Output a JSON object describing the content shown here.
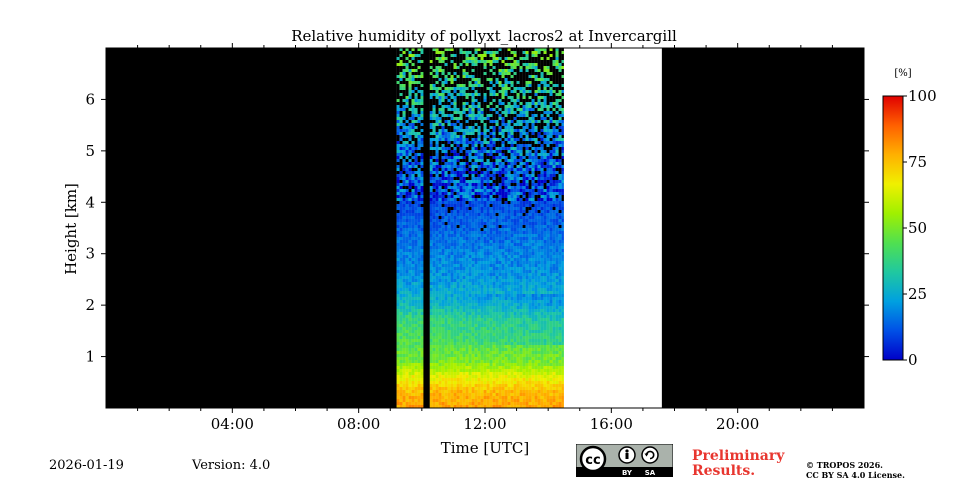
{
  "chart_data": {
    "type": "heatmap",
    "title": "Relative humidity of pollyxt_lacros2 at Invercargill",
    "xlabel": "Time [UTC]",
    "ylabel": "Height [km]",
    "xlim": [
      0,
      24
    ],
    "ylim": [
      0,
      7
    ],
    "x_ticks": [
      {
        "value": 4,
        "label": "04:00"
      },
      {
        "value": 8,
        "label": "08:00"
      },
      {
        "value": 12,
        "label": "12:00"
      },
      {
        "value": 16,
        "label": "16:00"
      },
      {
        "value": 20,
        "label": "20:00"
      }
    ],
    "y_ticks": [
      {
        "value": 1,
        "label": "1"
      },
      {
        "value": 2,
        "label": "2"
      },
      {
        "value": 3,
        "label": "3"
      },
      {
        "value": 4,
        "label": "4"
      },
      {
        "value": 5,
        "label": "5"
      },
      {
        "value": 6,
        "label": "6"
      }
    ],
    "colorbar": {
      "unit": "[%]",
      "range": [
        0,
        100
      ],
      "ticks": [
        {
          "value": 0,
          "label": "0"
        },
        {
          "value": 25,
          "label": "25"
        },
        {
          "value": 50,
          "label": "50"
        },
        {
          "value": 75,
          "label": "75"
        },
        {
          "value": 100,
          "label": "100"
        }
      ],
      "colormap": [
        "#0000c8",
        "#0050e6",
        "#00a0e0",
        "#20c8a0",
        "#50e050",
        "#a0f000",
        "#f0f000",
        "#ffb000",
        "#ff6000",
        "#e00000"
      ]
    },
    "no_data_color": "#000000",
    "gap_color": "#ffffff",
    "no_data_intervals": [
      [
        0,
        9.2
      ],
      [
        10.05,
        10.25
      ],
      [
        17.6,
        24
      ]
    ],
    "white_intervals": [
      [
        14.5,
        17.6
      ]
    ],
    "measurement_interval": [
      9.2,
      14.5
    ],
    "profile": [
      {
        "h": 0.0,
        "rh": 80
      },
      {
        "h": 0.3,
        "rh": 76
      },
      {
        "h": 0.6,
        "rh": 66
      },
      {
        "h": 0.9,
        "rh": 50
      },
      {
        "h": 1.3,
        "rh": 44
      },
      {
        "h": 1.7,
        "rh": 40
      },
      {
        "h": 2.0,
        "rh": 30
      },
      {
        "h": 2.5,
        "rh": 21
      },
      {
        "h": 3.0,
        "rh": 18
      },
      {
        "h": 3.5,
        "rh": 14
      },
      {
        "h": 4.0,
        "rh": 10
      },
      {
        "h": 4.5,
        "rh": 12
      },
      {
        "h": 5.0,
        "rh": 16
      },
      {
        "h": 5.5,
        "rh": 22
      },
      {
        "h": 6.0,
        "rh": 30
      },
      {
        "h": 6.5,
        "rh": 38
      },
      {
        "h": 7.0,
        "rh": 42
      }
    ]
  },
  "footer": {
    "date": "2026-01-19",
    "version": "Version: 4.0",
    "license_badge": {
      "cc": "cc",
      "by": "BY",
      "sa": "SA"
    },
    "preliminary_line1": "Preliminary",
    "preliminary_line2": "Results.",
    "copyright_line1": "© TROPOS 2026.",
    "copyright_line2": "CC BY SA 4.0 License."
  }
}
